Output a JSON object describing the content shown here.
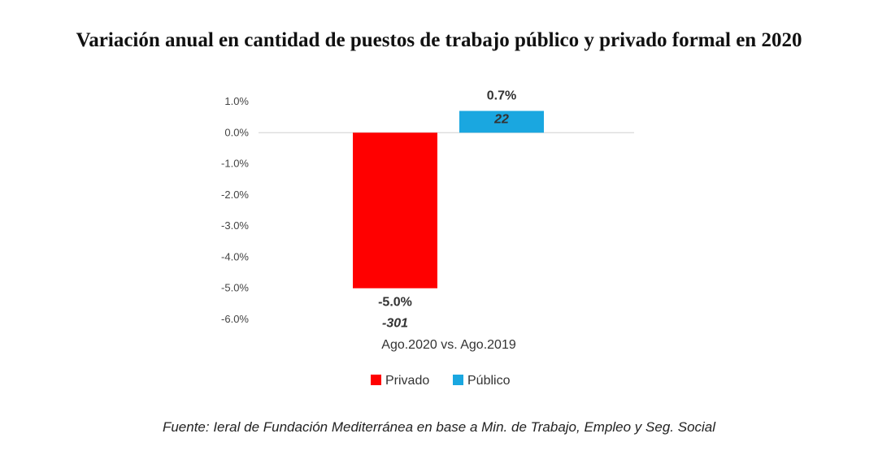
{
  "chart_data": {
    "type": "bar",
    "title": "Variación anual en cantidad de puestos de trabajo público y privado formal en 2020",
    "categories": [
      "Ago.2020 vs. Ago.2019"
    ],
    "series": [
      {
        "name": "Privado",
        "color": "#ff0000",
        "values": [
          -5.0
        ],
        "value_labels": [
          "-5.0%"
        ],
        "count_labels": [
          "-301"
        ]
      },
      {
        "name": "Público",
        "color": "#1aa7e0",
        "values": [
          0.7
        ],
        "value_labels": [
          "0.7%"
        ],
        "count_labels": [
          "22"
        ]
      }
    ],
    "ylim": [
      -6.0,
      1.0
    ],
    "yticks": [
      1.0,
      0.0,
      -1.0,
      -2.0,
      -3.0,
      -4.0,
      -5.0,
      -6.0
    ],
    "ytick_labels": [
      "1.0%",
      "0.0%",
      "-1.0%",
      "-2.0%",
      "-3.0%",
      "-4.0%",
      "-5.0%",
      "-6.0%"
    ],
    "legend_position": "bottom",
    "grid": false
  },
  "source": "Fuente: Ieral de Fundación Mediterránea en base a Min. de Trabajo, Empleo y Seg. Social"
}
